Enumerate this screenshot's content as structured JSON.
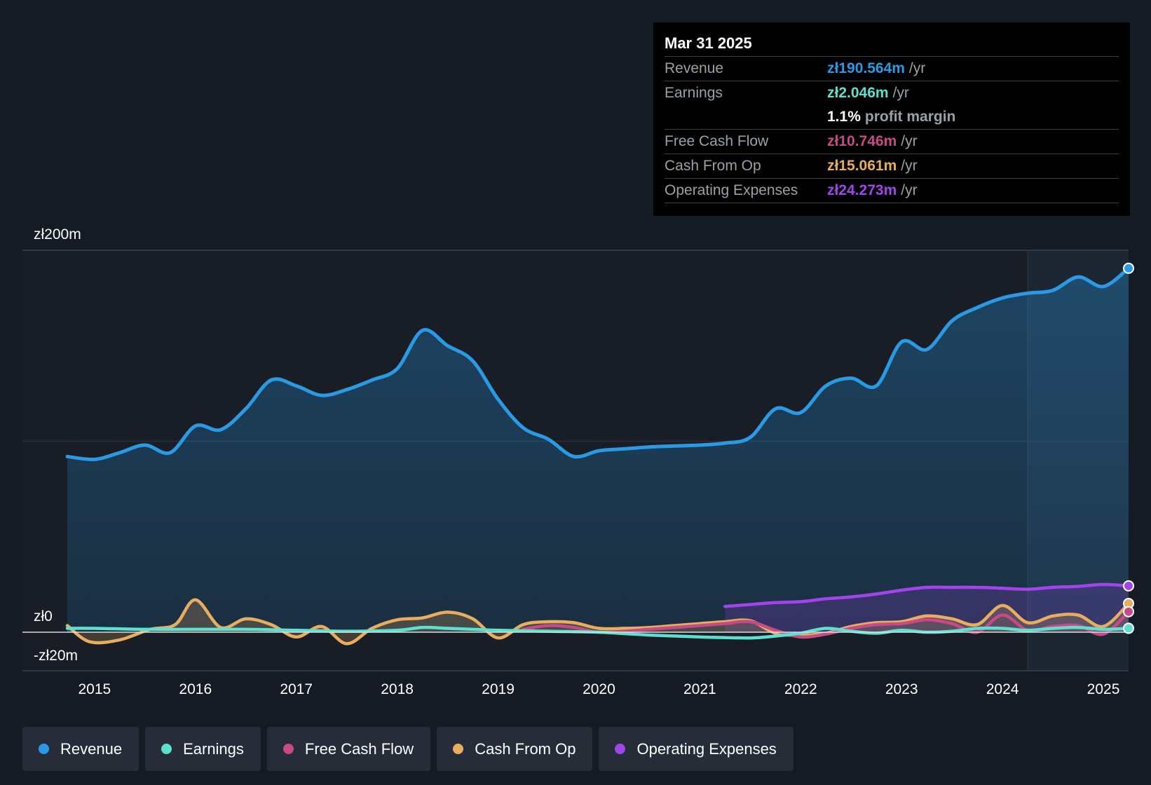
{
  "tooltip": {
    "date": "Mar 31 2025",
    "rows": [
      {
        "label": "Revenue",
        "value": "zł190.564m",
        "unit": "/yr"
      },
      {
        "label": "Earnings",
        "value": "zł2.046m",
        "unit": "/yr"
      },
      {
        "label": "",
        "value": "1.1%",
        "unit": "profit margin"
      },
      {
        "label": "Free Cash Flow",
        "value": "zł10.746m",
        "unit": "/yr"
      },
      {
        "label": "Cash From Op",
        "value": "zł15.061m",
        "unit": "/yr"
      },
      {
        "label": "Operating Expenses",
        "value": "zł24.273m",
        "unit": "/yr"
      }
    ]
  },
  "legend": [
    {
      "label": "Revenue",
      "color": "#2a9ae5"
    },
    {
      "label": "Earnings",
      "color": "#5ee0cf"
    },
    {
      "label": "Free Cash Flow",
      "color": "#c64a86"
    },
    {
      "label": "Cash From Op",
      "color": "#e9ad5f"
    },
    {
      "label": "Operating Expenses",
      "color": "#a244ec"
    }
  ],
  "chart_data": {
    "type": "area",
    "title": "",
    "xlabel": "",
    "ylabel": "",
    "ylim": [
      -20,
      200
    ],
    "y_tick_labels": [
      {
        "label": "zł200m",
        "value": 200
      },
      {
        "label": "zł0",
        "value": 0
      },
      {
        "label": "-zł20m",
        "value": -20
      }
    ],
    "x_tick_labels": [
      "2015",
      "2016",
      "2017",
      "2018",
      "2019",
      "2020",
      "2021",
      "2022",
      "2023",
      "2024",
      "2025"
    ],
    "xlim": [
      2014.73,
      2025.25
    ],
    "highlight_from": 2024.25,
    "series": [
      {
        "name": "Revenue",
        "color": "#2a9ae5",
        "fill": true,
        "points": [
          [
            2014.73,
            92
          ],
          [
            2015.0,
            90.5
          ],
          [
            2015.25,
            94
          ],
          [
            2015.5,
            98
          ],
          [
            2015.75,
            94
          ],
          [
            2016.0,
            108
          ],
          [
            2016.25,
            106
          ],
          [
            2016.5,
            117
          ],
          [
            2016.75,
            132
          ],
          [
            2017.0,
            129
          ],
          [
            2017.25,
            124
          ],
          [
            2017.5,
            127
          ],
          [
            2017.75,
            132
          ],
          [
            2018.0,
            138
          ],
          [
            2018.25,
            158
          ],
          [
            2018.5,
            150
          ],
          [
            2018.75,
            142
          ],
          [
            2019.0,
            122
          ],
          [
            2019.25,
            107
          ],
          [
            2019.5,
            101
          ],
          [
            2019.75,
            92
          ],
          [
            2020.0,
            95
          ],
          [
            2020.25,
            96
          ],
          [
            2020.5,
            97
          ],
          [
            2020.75,
            97.5
          ],
          [
            2021.0,
            98
          ],
          [
            2021.25,
            99
          ],
          [
            2021.5,
            102
          ],
          [
            2021.75,
            117
          ],
          [
            2022.0,
            115
          ],
          [
            2022.25,
            129
          ],
          [
            2022.5,
            133
          ],
          [
            2022.75,
            129
          ],
          [
            2023.0,
            152
          ],
          [
            2023.25,
            148
          ],
          [
            2023.5,
            163
          ],
          [
            2023.75,
            170
          ],
          [
            2024.0,
            175
          ],
          [
            2024.25,
            177.5
          ],
          [
            2024.5,
            179
          ],
          [
            2024.75,
            186
          ],
          [
            2025.0,
            181
          ],
          [
            2025.25,
            190.564
          ]
        ]
      },
      {
        "name": "Earnings",
        "color": "#5ee0cf",
        "fill": false,
        "points": [
          [
            2014.73,
            2
          ],
          [
            2015.0,
            2
          ],
          [
            2015.5,
            1.5
          ],
          [
            2016.0,
            1.5
          ],
          [
            2016.5,
            1.5
          ],
          [
            2017.0,
            1
          ],
          [
            2017.5,
            0.5
          ],
          [
            2018.0,
            1
          ],
          [
            2018.25,
            2.5
          ],
          [
            2018.5,
            2
          ],
          [
            2018.75,
            1.5
          ],
          [
            2019.0,
            1
          ],
          [
            2019.5,
            0.5
          ],
          [
            2020.0,
            0
          ],
          [
            2020.5,
            -1.5
          ],
          [
            2021.0,
            -2.5
          ],
          [
            2021.5,
            -3
          ],
          [
            2021.75,
            -2
          ],
          [
            2022.0,
            -0.5
          ],
          [
            2022.25,
            2
          ],
          [
            2022.5,
            0.5
          ],
          [
            2022.75,
            -0.5
          ],
          [
            2023.0,
            1
          ],
          [
            2023.25,
            0
          ],
          [
            2023.5,
            0.5
          ],
          [
            2023.75,
            2
          ],
          [
            2024.0,
            2
          ],
          [
            2024.25,
            1
          ],
          [
            2024.5,
            2
          ],
          [
            2024.75,
            2.5
          ],
          [
            2025.0,
            1.5
          ],
          [
            2025.25,
            2.046
          ]
        ]
      },
      {
        "name": "Free Cash Flow",
        "color": "#c64a86",
        "fill": false,
        "points": [
          [
            2019.25,
            1.5
          ],
          [
            2019.5,
            3.5
          ],
          [
            2019.75,
            2.5
          ],
          [
            2020.0,
            0
          ],
          [
            2020.25,
            0.5
          ],
          [
            2020.5,
            1.5
          ],
          [
            2020.75,
            2.5
          ],
          [
            2021.0,
            3.5
          ],
          [
            2021.25,
            4.5
          ],
          [
            2021.5,
            5.5
          ],
          [
            2021.75,
            1
          ],
          [
            2022.0,
            -2.5
          ],
          [
            2022.25,
            -1
          ],
          [
            2022.5,
            2
          ],
          [
            2022.75,
            4
          ],
          [
            2023.0,
            4.5
          ],
          [
            2023.25,
            6.5
          ],
          [
            2023.5,
            4.5
          ],
          [
            2023.75,
            0
          ],
          [
            2024.0,
            9
          ],
          [
            2024.25,
            1
          ],
          [
            2024.5,
            3
          ],
          [
            2024.75,
            3.5
          ],
          [
            2025.0,
            -1
          ],
          [
            2025.25,
            10.746
          ]
        ]
      },
      {
        "name": "Cash From Op",
        "color": "#e9ad5f",
        "fill": true,
        "points": [
          [
            2014.73,
            3.5
          ],
          [
            2014.95,
            -5
          ],
          [
            2015.25,
            -4
          ],
          [
            2015.55,
            1.5
          ],
          [
            2015.8,
            4
          ],
          [
            2016.0,
            17
          ],
          [
            2016.25,
            2.5
          ],
          [
            2016.5,
            7
          ],
          [
            2016.75,
            4
          ],
          [
            2017.0,
            -2.5
          ],
          [
            2017.25,
            3
          ],
          [
            2017.5,
            -6
          ],
          [
            2017.75,
            2
          ],
          [
            2018.0,
            6.5
          ],
          [
            2018.25,
            7.5
          ],
          [
            2018.5,
            10.5
          ],
          [
            2018.75,
            7
          ],
          [
            2019.0,
            -3
          ],
          [
            2019.25,
            4
          ],
          [
            2019.5,
            5.5
          ],
          [
            2019.75,
            5
          ],
          [
            2020.0,
            2
          ],
          [
            2020.25,
            2
          ],
          [
            2020.5,
            2.5
          ],
          [
            2020.75,
            3.5
          ],
          [
            2021.0,
            4.5
          ],
          [
            2021.25,
            5.5
          ],
          [
            2021.5,
            6
          ],
          [
            2021.75,
            -0.5
          ],
          [
            2022.0,
            -1.5
          ],
          [
            2022.25,
            -0.5
          ],
          [
            2022.5,
            3
          ],
          [
            2022.75,
            5
          ],
          [
            2023.0,
            5.5
          ],
          [
            2023.25,
            8.5
          ],
          [
            2023.5,
            7
          ],
          [
            2023.75,
            4
          ],
          [
            2024.0,
            14
          ],
          [
            2024.25,
            5
          ],
          [
            2024.5,
            8.5
          ],
          [
            2024.75,
            9
          ],
          [
            2025.0,
            3
          ],
          [
            2025.25,
            15.061
          ]
        ]
      },
      {
        "name": "Operating Expenses",
        "color": "#a244ec",
        "fill": true,
        "points": [
          [
            2021.25,
            13.5
          ],
          [
            2021.5,
            14.5
          ],
          [
            2021.75,
            15.5
          ],
          [
            2022.0,
            16
          ],
          [
            2022.25,
            17.5
          ],
          [
            2022.5,
            18.5
          ],
          [
            2022.75,
            20
          ],
          [
            2023.0,
            22
          ],
          [
            2023.25,
            23.5
          ],
          [
            2023.5,
            23.5
          ],
          [
            2023.75,
            23.5
          ],
          [
            2024.0,
            23
          ],
          [
            2024.25,
            22.5
          ],
          [
            2024.5,
            23.5
          ],
          [
            2024.75,
            24
          ],
          [
            2025.0,
            25
          ],
          [
            2025.25,
            24.273
          ]
        ]
      }
    ]
  }
}
